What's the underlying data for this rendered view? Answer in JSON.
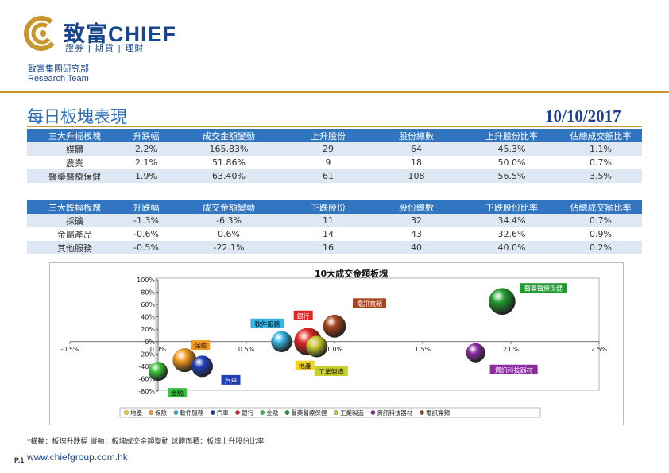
{
  "header": {
    "brand_name": "致富CHIEF",
    "brand_sub": "證券 | 期貨 | 理財",
    "dept_name": "致富集團研究部",
    "dept_team": "Research Team"
  },
  "page": {
    "title": "每日板塊表現",
    "date": "10/10/2017"
  },
  "gainers_table": {
    "headers": [
      "三大升幅板塊",
      "升跌幅",
      "成交金額變動",
      "上升股份",
      "股份總數",
      "上升股份比率",
      "佔總成交額比率"
    ],
    "rows": [
      [
        "媒體",
        "2.2%",
        "165.83%",
        "29",
        "64",
        "45.3%",
        "1.1%"
      ],
      [
        "農業",
        "2.1%",
        "51.86%",
        "9",
        "18",
        "50.0%",
        "0.7%"
      ],
      [
        "醫藥醫療保健",
        "1.9%",
        "63.40%",
        "61",
        "108",
        "56.5%",
        "3.5%"
      ]
    ]
  },
  "losers_table": {
    "headers": [
      "三大跌幅板塊",
      "升跌幅",
      "成交金額變動",
      "下跌股份",
      "股份總數",
      "下跌股份比率",
      "佔總成交額比率"
    ],
    "rows": [
      [
        "採礦",
        "-1.3%",
        "-6.3%",
        "11",
        "32",
        "34.4%",
        "0.7%"
      ],
      [
        "金屬產品",
        "-0.6%",
        "0.6%",
        "14",
        "43",
        "32.6%",
        "0.9%"
      ],
      [
        "其他服務",
        "-0.5%",
        "-22.1%",
        "16",
        "40",
        "40.0%",
        "0.2%"
      ]
    ]
  },
  "chart_data": {
    "type": "bubble",
    "title": "10大成交金額板塊",
    "x_ticks": [
      "-0.5%",
      "0.0%",
      "0.5%",
      "1.0%",
      "1.5%",
      "2.0%",
      "2.5%"
    ],
    "y_ticks": [
      "100%",
      "80%",
      "60%",
      "40%",
      "20%",
      "0%",
      "-20%",
      "-40%",
      "-60%",
      "-80%"
    ],
    "xlim": [
      -0.5,
      2.5
    ],
    "ylim": [
      -80,
      100
    ],
    "grid": false,
    "legend_position": "bottom",
    "series": [
      {
        "name": "地產",
        "x": 0.85,
        "y": 0,
        "size": 46,
        "color": "#f2d31f"
      },
      {
        "name": "保險",
        "x": 0.15,
        "y": -30,
        "size": 50,
        "color": "#f29a1d"
      },
      {
        "name": "軟件服務",
        "x": 0.7,
        "y": 0,
        "size": 44,
        "color": "#35b5e5"
      },
      {
        "name": "汽車",
        "x": 0.25,
        "y": -40,
        "size": 45,
        "color": "#1f3fb8"
      },
      {
        "name": "銀行",
        "x": 0.85,
        "y": 0,
        "size": 58,
        "color": "#e02525"
      },
      {
        "name": "金融",
        "x": 0.0,
        "y": -48,
        "size": 40,
        "color": "#39c23a"
      },
      {
        "name": "醫藥醫療保健",
        "x": 1.95,
        "y": 65,
        "size": 56,
        "color": "#1e9a2e"
      },
      {
        "name": "工業製造",
        "x": 0.9,
        "y": -8,
        "size": 45,
        "color": "#c7d02a"
      },
      {
        "name": "資訊科技器材",
        "x": 1.8,
        "y": -18,
        "size": 40,
        "color": "#8c2ba0"
      },
      {
        "name": "電訊寬頻",
        "x": 1.0,
        "y": 25,
        "size": 48,
        "color": "#a8441c"
      }
    ]
  },
  "footer": {
    "footnote": "*橫軸：板塊升跌幅      縱軸：板塊成交金額變動      球體面積：板塊上升股份比率",
    "page_num": "P.1",
    "website": "www.chiefgroup.com.hk"
  }
}
